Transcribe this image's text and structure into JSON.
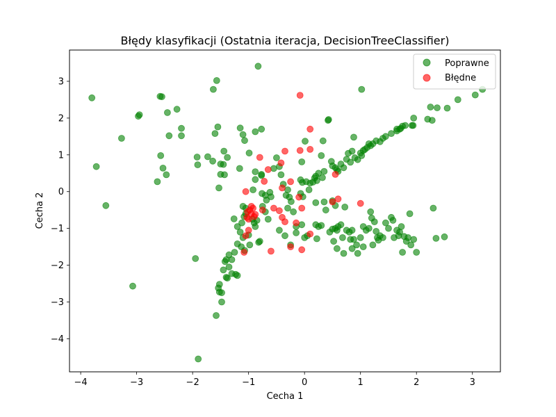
{
  "chart_data": {
    "type": "scatter",
    "title": "Błędy klasyfikacji (Ostatnia iteracja, DecisionTreeClassifier)",
    "xlabel": "Cecha 1",
    "ylabel": "Cecha 2",
    "xlim": [
      -4.2,
      3.5
    ],
    "ylim": [
      -4.9,
      3.85
    ],
    "xticks": [
      -4,
      -3,
      -2,
      -1,
      0,
      1,
      2,
      3
    ],
    "yticks": [
      -4,
      -3,
      -2,
      -1,
      0,
      1,
      2,
      3
    ],
    "grid": false,
    "legend_position": "top-right",
    "series": [
      {
        "name": "Poprawne",
        "color": "#008000",
        "points": [
          [
            -3.8,
            2.55
          ],
          [
            -3.72,
            0.68
          ],
          [
            -3.55,
            -0.38
          ],
          [
            -3.27,
            1.45
          ],
          [
            -3.07,
            -2.57
          ],
          [
            -2.97,
            2.05
          ],
          [
            -2.95,
            2.09
          ],
          [
            -2.58,
            2.59
          ],
          [
            -2.55,
            2.58
          ],
          [
            -2.45,
            2.15
          ],
          [
            -2.42,
            1.52
          ],
          [
            -2.28,
            2.24
          ],
          [
            -2.2,
            1.72
          ],
          [
            -2.2,
            1.52
          ],
          [
            -2.63,
            0.27
          ],
          [
            -2.57,
            0.98
          ],
          [
            -2.53,
            0.64
          ],
          [
            -2.47,
            0.46
          ],
          [
            -1.92,
            0.94
          ],
          [
            -1.91,
            0.73
          ],
          [
            -1.73,
            0.95
          ],
          [
            -1.64,
            0.83
          ],
          [
            -1.63,
            2.78
          ],
          [
            -1.57,
            3.02
          ],
          [
            -1.6,
            1.58
          ],
          [
            -1.55,
            1.76
          ],
          [
            -1.5,
            0.75
          ],
          [
            -1.5,
            0.47
          ],
          [
            -1.44,
            1.1
          ],
          [
            -1.38,
            0.93
          ],
          [
            -1.45,
            0.74
          ],
          [
            -1.43,
            0.46
          ],
          [
            -1.53,
            0.1
          ],
          [
            -0.83,
            3.41
          ],
          [
            -1.15,
            1.73
          ],
          [
            -1.1,
            1.55
          ],
          [
            -1.07,
            1.39
          ],
          [
            -0.99,
            1.05
          ],
          [
            -1.16,
            0.63
          ],
          [
            -0.88,
            1.63
          ],
          [
            -0.77,
            1.7
          ],
          [
            -0.88,
            0.54
          ],
          [
            -0.88,
            0.33
          ],
          [
            -0.77,
            0.47
          ],
          [
            -0.77,
            0.44
          ],
          [
            -0.92,
            0.05
          ],
          [
            -0.76,
            -0.05
          ],
          [
            -0.7,
            -0.1
          ],
          [
            -0.68,
            -0.23
          ],
          [
            -0.62,
            -0.02
          ],
          [
            -0.6,
            -0.14
          ],
          [
            -0.55,
            0.63
          ],
          [
            -0.5,
            0.92
          ],
          [
            -0.45,
            0.68
          ],
          [
            -0.42,
            0.46
          ],
          [
            -0.38,
            0.2
          ],
          [
            -0.33,
            -0.1
          ],
          [
            -0.3,
            0.05
          ],
          [
            -0.27,
            -0.15
          ],
          [
            -0.24,
            -0.27
          ],
          [
            -0.07,
            0.32
          ],
          [
            -0.05,
            0.81
          ],
          [
            0.01,
            1.37
          ],
          [
            -0.04,
            0.25
          ],
          [
            -0.07,
            -0.05
          ],
          [
            -0.03,
            -0.14
          ],
          [
            0.03,
            0.27
          ],
          [
            0.08,
            0.05
          ],
          [
            0.1,
            0.23
          ],
          [
            0.15,
            0.26
          ],
          [
            0.18,
            0.37
          ],
          [
            0.2,
            0.42
          ],
          [
            0.22,
            0.3
          ],
          [
            0.25,
            0.5
          ],
          [
            0.32,
            0.38
          ],
          [
            0.35,
            0.55
          ],
          [
            0.3,
            0.98
          ],
          [
            0.33,
            1.38
          ],
          [
            0.42,
            1.94
          ],
          [
            0.43,
            1.96
          ],
          [
            0.48,
            0.82
          ],
          [
            0.5,
            0.7
          ],
          [
            0.55,
            0.65
          ],
          [
            0.58,
            0.6
          ],
          [
            0.6,
            0.55
          ],
          [
            0.65,
            0.75
          ],
          [
            0.7,
            0.65
          ],
          [
            0.75,
            0.88
          ],
          [
            0.78,
            1.04
          ],
          [
            0.82,
            0.8
          ],
          [
            0.85,
            1.1
          ],
          [
            0.88,
            1.48
          ],
          [
            0.9,
            0.92
          ],
          [
            0.95,
            0.87
          ],
          [
            1.0,
            1.05
          ],
          [
            1.02,
            0.98
          ],
          [
            1.08,
            1.15
          ],
          [
            1.12,
            1.2
          ],
          [
            1.18,
            1.25
          ],
          [
            1.22,
            1.3
          ],
          [
            1.28,
            1.38
          ],
          [
            1.35,
            1.36
          ],
          [
            1.15,
            1.3
          ],
          [
            1.05,
            1.12
          ],
          [
            1.4,
            1.45
          ],
          [
            1.45,
            1.5
          ],
          [
            1.55,
            1.58
          ],
          [
            1.65,
            1.65
          ],
          [
            1.7,
            1.7
          ],
          [
            1.75,
            1.78
          ],
          [
            1.8,
            1.8
          ],
          [
            1.72,
            1.72
          ],
          [
            1.92,
            1.8
          ],
          [
            1.95,
            2.0
          ],
          [
            1.94,
            1.8
          ],
          [
            2.2,
            1.97
          ],
          [
            2.28,
            1.94
          ],
          [
            2.25,
            2.3
          ],
          [
            2.37,
            2.28
          ],
          [
            2.55,
            2.27
          ],
          [
            2.74,
            2.5
          ],
          [
            3.05,
            2.63
          ],
          [
            3.18,
            2.78
          ],
          [
            1.02,
            2.78
          ],
          [
            1.65,
            1.7
          ],
          [
            -1.26,
            -0.74
          ],
          [
            -1.2,
            -0.95
          ],
          [
            -1.15,
            -1.1
          ],
          [
            -1.12,
            -0.85
          ],
          [
            -1.1,
            -1.25
          ],
          [
            -1.08,
            -0.68
          ],
          [
            -1.05,
            -0.6
          ],
          [
            -1.0,
            -1.18
          ],
          [
            -0.98,
            -1.45
          ],
          [
            -0.93,
            -0.75
          ],
          [
            -0.9,
            -0.85
          ],
          [
            -0.88,
            -0.95
          ],
          [
            -0.85,
            -0.78
          ],
          [
            -0.82,
            -1.38
          ],
          [
            -0.8,
            -1.35
          ],
          [
            -1.13,
            -1.5
          ],
          [
            -1.07,
            -1.6
          ],
          [
            -1.2,
            -1.42
          ],
          [
            -1.25,
            -1.65
          ],
          [
            -1.35,
            -1.72
          ],
          [
            -1.3,
            -1.85
          ],
          [
            -1.4,
            -1.85
          ],
          [
            -1.42,
            -1.9
          ],
          [
            -1.45,
            -2.13
          ],
          [
            -1.35,
            -2.05
          ],
          [
            -1.38,
            -2.35
          ],
          [
            -1.4,
            -2.33
          ],
          [
            -1.3,
            -2.23
          ],
          [
            -1.2,
            -2.28
          ],
          [
            -1.23,
            -2.25
          ],
          [
            -1.52,
            -2.52
          ],
          [
            -1.54,
            -2.62
          ],
          [
            -1.48,
            -2.75
          ],
          [
            -1.52,
            -2.73
          ],
          [
            -1.48,
            -3.0
          ],
          [
            -1.58,
            -3.37
          ],
          [
            -1.9,
            -4.55
          ],
          [
            -1.95,
            -1.82
          ],
          [
            -1.1,
            -0.4
          ],
          [
            -1.05,
            -0.45
          ],
          [
            -0.7,
            -0.55
          ],
          [
            -0.75,
            -0.4
          ],
          [
            -0.65,
            -0.75
          ],
          [
            -0.3,
            -0.45
          ],
          [
            -0.2,
            -0.55
          ],
          [
            -0.15,
            -0.95
          ],
          [
            -0.35,
            -1.2
          ],
          [
            -0.25,
            -1.45
          ],
          [
            -0.15,
            -1.12
          ],
          [
            -0.05,
            -0.9
          ],
          [
            0.0,
            -1.25
          ],
          [
            0.05,
            -1.2
          ],
          [
            0.2,
            -0.9
          ],
          [
            0.25,
            -0.95
          ],
          [
            0.22,
            -1.28
          ],
          [
            0.3,
            -0.92
          ],
          [
            0.35,
            -0.28
          ],
          [
            0.38,
            -0.5
          ],
          [
            0.5,
            -0.25
          ],
          [
            0.55,
            -0.38
          ],
          [
            0.45,
            -1.1
          ],
          [
            0.5,
            -1.02
          ],
          [
            0.52,
            -1.35
          ],
          [
            0.55,
            -1.0
          ],
          [
            0.58,
            -1.05
          ],
          [
            0.6,
            -0.95
          ],
          [
            0.65,
            -0.9
          ],
          [
            0.68,
            -1.25
          ],
          [
            0.7,
            -1.68
          ],
          [
            0.72,
            -0.42
          ],
          [
            0.75,
            -1.05
          ],
          [
            0.8,
            -1.1
          ],
          [
            0.82,
            -1.3
          ],
          [
            0.85,
            -1.55
          ],
          [
            0.88,
            -1.3
          ],
          [
            0.93,
            -1.45
          ],
          [
            0.95,
            -1.68
          ],
          [
            1.0,
            -1.25
          ],
          [
            1.05,
            -0.95
          ],
          [
            1.05,
            -1.5
          ],
          [
            1.1,
            -1.05
          ],
          [
            1.15,
            -1.0
          ],
          [
            1.18,
            -0.55
          ],
          [
            1.2,
            -0.72
          ],
          [
            1.22,
            -1.45
          ],
          [
            1.25,
            -0.82
          ],
          [
            1.28,
            -1.08
          ],
          [
            1.3,
            -1.25
          ],
          [
            1.32,
            -1.32
          ],
          [
            1.35,
            -1.2
          ],
          [
            1.4,
            -1.25
          ],
          [
            1.5,
            -1.0
          ],
          [
            1.55,
            -0.7
          ],
          [
            1.58,
            -0.78
          ],
          [
            1.6,
            -1.25
          ],
          [
            1.65,
            -1.05
          ],
          [
            1.68,
            -1.2
          ],
          [
            1.7,
            -1.1
          ],
          [
            1.73,
            -0.95
          ],
          [
            1.75,
            -1.65
          ],
          [
            1.78,
            -1.22
          ],
          [
            1.82,
            -1.35
          ],
          [
            1.85,
            -1.25
          ],
          [
            1.88,
            -0.6
          ],
          [
            1.9,
            -1.45
          ],
          [
            2.0,
            -1.65
          ],
          [
            2.3,
            -0.45
          ],
          [
            2.35,
            -1.27
          ],
          [
            2.5,
            -1.23
          ],
          [
            1.95,
            -1.3
          ],
          [
            0.2,
            -0.3
          ],
          [
            0.58,
            -1.55
          ],
          [
            -0.45,
            -1.05
          ],
          [
            0.85,
            -1.05
          ],
          [
            1.45,
            -0.85
          ]
        ]
      },
      {
        "name": "Błędne",
        "color": "#ff0000",
        "points": [
          [
            -0.08,
            2.62
          ],
          [
            0.1,
            1.7
          ],
          [
            -0.35,
            1.1
          ],
          [
            -0.08,
            1.12
          ],
          [
            0.1,
            1.15
          ],
          [
            -0.8,
            0.93
          ],
          [
            -0.42,
            0.78
          ],
          [
            -0.65,
            0.6
          ],
          [
            -0.72,
            0.28
          ],
          [
            -0.4,
            0.1
          ],
          [
            -0.25,
            0.27
          ],
          [
            -0.1,
            -0.15
          ],
          [
            -1.05,
            0.0
          ],
          [
            -0.95,
            -0.4
          ],
          [
            -0.98,
            -0.5
          ],
          [
            -1.02,
            -0.55
          ],
          [
            -0.95,
            -0.6
          ],
          [
            -0.92,
            -0.45
          ],
          [
            -0.9,
            -0.68
          ],
          [
            -0.88,
            -0.62
          ],
          [
            -1.0,
            -0.75
          ],
          [
            -1.03,
            -0.7
          ],
          [
            -0.75,
            -0.5
          ],
          [
            -0.55,
            -0.45
          ],
          [
            -0.45,
            -0.52
          ],
          [
            -0.4,
            -0.7
          ],
          [
            -0.35,
            -0.82
          ],
          [
            -0.15,
            -0.85
          ],
          [
            -0.05,
            -0.45
          ],
          [
            -1.0,
            -1.05
          ],
          [
            -1.05,
            -1.2
          ],
          [
            -1.08,
            -1.65
          ],
          [
            -0.6,
            -1.62
          ],
          [
            -0.25,
            -1.5
          ],
          [
            -0.05,
            -1.58
          ],
          [
            0.1,
            -1.15
          ],
          [
            0.5,
            -0.28
          ],
          [
            0.6,
            -0.2
          ],
          [
            1.0,
            -0.32
          ],
          [
            0.55,
            0.47
          ]
        ]
      }
    ]
  }
}
